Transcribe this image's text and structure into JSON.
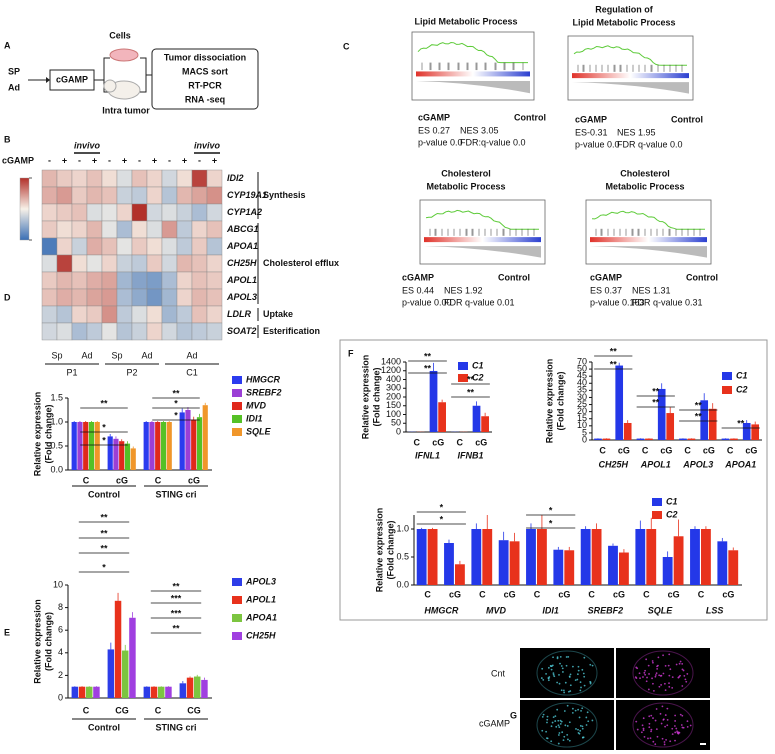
{
  "panel_labels": [
    "A",
    "B",
    "C",
    "D",
    "E",
    "F",
    "G"
  ],
  "workflow": {
    "inputs": [
      "SP",
      "Ad"
    ],
    "agent": "cGAMP",
    "cells": "Cells",
    "mouse": "Intra tumor",
    "steps": [
      "Tumor dissociation",
      "MACS sort",
      "RT-PCR",
      "RNA -seq"
    ]
  },
  "gsea": [
    {
      "title": [
        "Lipid Metabolic Process"
      ],
      "left": "cGAMP",
      "right": "Control",
      "stats": [
        "ES 0.27",
        "NES 3.05",
        "p-value 0.0",
        "FDR:q-value 0.0"
      ]
    },
    {
      "title": [
        "Regulation of",
        "Lipid Metabolic Process"
      ],
      "left": "cGAMP",
      "right": "Control",
      "stats": [
        "ES-0.31",
        "NES 1.95",
        "p-value 0.0",
        "FDR q-value 0.0"
      ]
    },
    {
      "title": [
        "Cholesterol",
        "Metabolic Process"
      ],
      "left": "cGAMP",
      "right": "Control",
      "stats": [
        "ES 0.44",
        "NES 1.92",
        "p-value 0.00",
        "FDR q-value 0.01"
      ]
    },
    {
      "title": [
        "Cholesterol",
        "Metabolic Process"
      ],
      "left": "cGAMP",
      "right": "Control",
      "stats": [
        "ES 0.37",
        "NES 1.31",
        "p-value 0.163",
        "FDR q-value 0.31"
      ]
    }
  ],
  "imaging": {
    "rows": [
      "Cnt",
      "cGAMP"
    ]
  },
  "chart_data": [
    {
      "type": "bar",
      "ylabel": [
        "Relative expression",
        "(Fold change)"
      ],
      "categories": [
        "C",
        "cG",
        "C",
        "cG"
      ],
      "groups": [
        "Control",
        "STING cri"
      ],
      "series": [
        {
          "name": "HMGCR",
          "color": "#2b3bef",
          "values": [
            1.0,
            0.7,
            1.0,
            1.2
          ],
          "errors": [
            0.02,
            0.05,
            0.02,
            0.08
          ]
        },
        {
          "name": "SREBF2",
          "color": "#9b3fd6",
          "values": [
            1.0,
            0.65,
            1.0,
            1.25
          ],
          "errors": [
            0.02,
            0.05,
            0.02,
            0.06
          ]
        },
        {
          "name": "MVD",
          "color": "#e0281b",
          "values": [
            1.0,
            0.6,
            1.0,
            1.05
          ],
          "errors": [
            0.02,
            0.04,
            0.02,
            0.06
          ]
        },
        {
          "name": "IDI1",
          "color": "#55c126",
          "values": [
            1.0,
            0.55,
            1.0,
            1.1
          ],
          "errors": [
            0.02,
            0.05,
            0.02,
            0.07
          ]
        },
        {
          "name": "SQLE",
          "color": "#f0962a",
          "values": [
            1.0,
            0.45,
            1.0,
            1.35
          ],
          "errors": [
            0.02,
            0.04,
            0.02,
            0.05
          ]
        }
      ],
      "ylim": [
        0,
        1.5
      ],
      "yticks": [
        {
          "value": 0,
          "label": "0.0"
        },
        {
          "value": 0.5,
          "label": "0.5"
        },
        {
          "value": 1,
          "label": "1.0"
        },
        {
          "value": 1.5,
          "label": "1.5"
        }
      ],
      "annotations": [
        "*",
        "*",
        "**",
        "*",
        "*",
        "**"
      ],
      "legend": "right"
    },
    {
      "type": "bar",
      "ylabel": [
        "Relative expression",
        "(Fold change)"
      ],
      "categories": [
        "C",
        "CG",
        "C",
        "CG"
      ],
      "groups": [
        "Control",
        "STING cri"
      ],
      "series": [
        {
          "name": "APOL3",
          "color": "#2d3de8",
          "values": [
            1,
            4.3,
            1,
            1.3
          ],
          "errors": [
            0.05,
            0.6,
            0.05,
            0.2
          ]
        },
        {
          "name": "APOL1",
          "color": "#e8321c",
          "values": [
            1,
            8.6,
            1,
            1.8
          ],
          "errors": [
            0.05,
            0.7,
            0.05,
            0.1
          ]
        },
        {
          "name": "APOA1",
          "color": "#7cc540",
          "values": [
            1,
            4.2,
            1,
            1.9
          ],
          "errors": [
            0.05,
            0.5,
            0.05,
            0.15
          ]
        },
        {
          "name": "CH25H",
          "color": "#a03fe0",
          "values": [
            1,
            7.1,
            1,
            1.6
          ],
          "errors": [
            0.05,
            0.5,
            0.05,
            0.2
          ]
        }
      ],
      "ylim": [
        0,
        10
      ],
      "yticks": [
        0,
        2,
        4,
        6,
        8,
        10
      ],
      "annotations": [
        "*",
        "**",
        "**",
        "**",
        "**",
        "***",
        "***",
        "**"
      ],
      "legend": "right"
    },
    {
      "type": "bar",
      "ylabel": [
        "Relative expression",
        "(Fold change)"
      ],
      "categories": [
        "C",
        "cG",
        "C",
        "cG"
      ],
      "groups": [
        "IFNL1",
        "IFNB1"
      ],
      "series": [
        {
          "name": "C1",
          "color": "#2438e8",
          "values": [
            1,
            1180,
            1,
            150
          ],
          "errors": [
            1,
            200,
            1,
            25
          ]
        },
        {
          "name": "C2",
          "color": "#e8321c",
          "values": [
            1,
            170,
            1,
            90
          ],
          "errors": [
            1,
            15,
            1,
            20
          ]
        }
      ],
      "ylim": [
        0,
        1400
      ],
      "yticks": [
        0,
        50,
        100,
        150,
        200,
        300,
        400,
        1200,
        1400
      ],
      "axis_break": true,
      "annotations": [
        "**",
        "**",
        "**",
        "**"
      ],
      "legend": "inside"
    },
    {
      "type": "bar",
      "ylabel": [
        "Relative expression",
        "(Fold change)"
      ],
      "categories": [
        "C",
        "cG",
        "C",
        "cG",
        "C",
        "cG",
        "C",
        "cG"
      ],
      "groups": [
        "CH25H",
        "APOL1",
        "APOL3",
        "APOA1"
      ],
      "series": [
        {
          "name": "C1",
          "color": "#2438e8",
          "values": [
            1,
            60,
            1,
            36,
            1,
            28,
            1,
            12
          ],
          "errors": [
            0.2,
            8,
            0.2,
            4,
            0.2,
            5,
            0.2,
            2
          ]
        },
        {
          "name": "C2",
          "color": "#e8321c",
          "values": [
            1,
            12,
            1,
            19,
            1,
            22,
            1,
            11
          ],
          "errors": [
            0.2,
            2,
            0.2,
            4,
            0.2,
            4,
            0.2,
            2
          ]
        }
      ],
      "ylim": [
        0,
        70
      ],
      "yticks": [
        0,
        5,
        10,
        15,
        20,
        25,
        30,
        35,
        40,
        45,
        50,
        70
      ],
      "axis_break": true,
      "annotations": [
        "**",
        "**",
        "**",
        "**",
        "**",
        "**",
        "**"
      ],
      "legend": "inside"
    },
    {
      "type": "bar",
      "ylabel": [
        "Relative expression",
        "(Fold change)"
      ],
      "categories": [
        "C",
        "cG",
        "C",
        "cG",
        "C",
        "cG",
        "C",
        "cG",
        "C",
        "cG",
        "C",
        "cG"
      ],
      "groups": [
        "HMGCR",
        "MVD",
        "IDI1",
        "SREBF2",
        "SQLE",
        "LSS"
      ],
      "series": [
        {
          "name": "C1",
          "color": "#2438e8",
          "values": [
            1,
            0.75,
            1,
            0.8,
            1,
            0.63,
            1,
            0.7,
            1,
            0.5,
            1,
            0.78
          ],
          "errors": [
            0.02,
            0.06,
            0.1,
            0.15,
            0.1,
            0.05,
            0.05,
            0.04,
            0.15,
            0.1,
            0.05,
            0.06
          ]
        },
        {
          "name": "C2",
          "color": "#e8321c",
          "values": [
            1,
            0.37,
            1,
            0.78,
            1,
            0.62,
            1,
            0.58,
            1,
            0.87,
            1,
            0.62
          ],
          "errors": [
            0.02,
            0.06,
            0.25,
            0.15,
            0.25,
            0.06,
            0.1,
            0.06,
            0.2,
            0.3,
            0.05,
            0.05
          ]
        }
      ],
      "ylim": [
        0,
        1.25
      ],
      "yticks": [
        {
          "value": 0,
          "label": "0.0"
        },
        {
          "value": 0.5,
          "label": "0.5"
        },
        {
          "value": 1,
          "label": "1.0"
        }
      ],
      "annotations": [
        "*",
        "*",
        "*",
        "*"
      ],
      "legend": "inside"
    },
    {
      "type": "heatmap",
      "x_label": "cGAMP",
      "columns": [
        "-",
        "+",
        "-",
        "+",
        "-",
        "+",
        "-",
        "+",
        "-",
        "+",
        "-",
        "+"
      ],
      "column_annotations": [
        "invivo",
        "invivo"
      ],
      "rows": [
        "IDI2",
        "CYP19A1",
        "CYP1A2",
        "ABCG1",
        "APOA1",
        "CH25H",
        "APOL1",
        "APOL3",
        "LDLR",
        "SOAT2"
      ],
      "row_groups": [
        "Synthesis",
        "Cholesterol efflux",
        "Uptake",
        "Esterification"
      ],
      "tissues": [
        "Sp",
        "Ad",
        "Sp",
        "Ad",
        "Ad"
      ],
      "samples": [
        "P1",
        "P2",
        "C1"
      ],
      "values": [
        [
          0.6,
          0.4,
          0.3,
          0.5,
          0.2,
          -0.3,
          0.5,
          0.3,
          -0.4,
          0.2,
          1.8,
          0.3
        ],
        [
          0.7,
          0.9,
          0.4,
          0.6,
          0.5,
          -0.5,
          -0.6,
          0.3,
          -0.7,
          0.6,
          0.8,
          1.0
        ],
        [
          0.3,
          0.4,
          0.5,
          -0.3,
          -0.2,
          0.3,
          2.0,
          -0.4,
          -0.3,
          -0.5,
          -0.8,
          -0.4
        ],
        [
          0.4,
          0.2,
          0.3,
          0.6,
          -0.2,
          -0.8,
          0.2,
          -0.3,
          0.9,
          -0.6,
          0.3,
          0.5
        ],
        [
          -1.8,
          0.3,
          -0.5,
          0.7,
          0.5,
          -0.2,
          0.4,
          0.2,
          -0.3,
          -0.6,
          0.4,
          -0.7
        ],
        [
          -0.3,
          1.8,
          0.2,
          -0.2,
          0.3,
          -0.5,
          -0.6,
          0.4,
          -0.4,
          0.6,
          0.5,
          0.3
        ],
        [
          0.4,
          0.6,
          0.5,
          0.7,
          0.8,
          -0.9,
          -1.2,
          -1.3,
          -0.8,
          0.3,
          0.5,
          0.4
        ],
        [
          0.5,
          0.7,
          0.6,
          0.8,
          0.9,
          -0.8,
          -1.1,
          -1.4,
          -0.9,
          0.3,
          0.6,
          0.5
        ],
        [
          -0.5,
          -0.7,
          0.3,
          0.4,
          1.0,
          -0.6,
          -0.3,
          0.2,
          -0.9,
          -0.6,
          0.5,
          0.3
        ],
        [
          -0.4,
          -0.3,
          -0.8,
          -0.6,
          -0.2,
          -0.7,
          -0.5,
          0.3,
          -0.4,
          -0.7,
          -0.6,
          -0.5
        ]
      ],
      "clim": [
        -2,
        2
      ]
    }
  ]
}
